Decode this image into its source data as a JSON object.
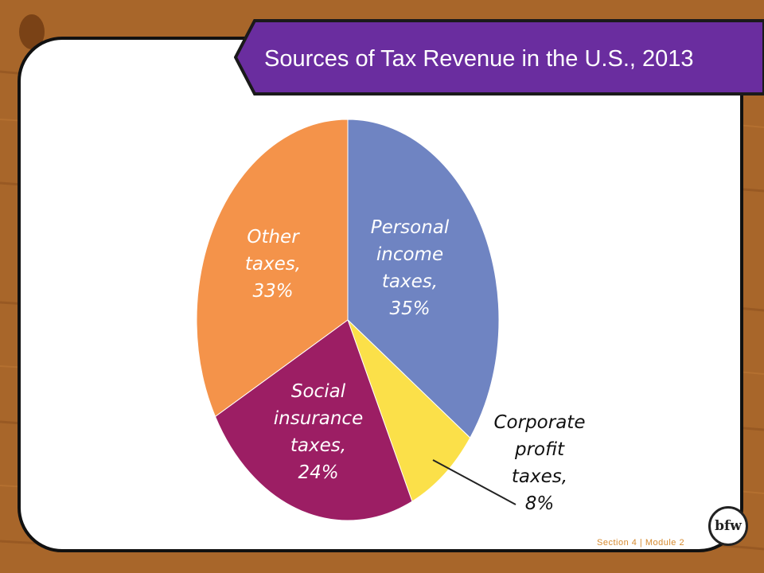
{
  "slide": {
    "title": "Sources of Tax Revenue in the U.S., 2013",
    "footer": "Section 4 | Module 2",
    "logo_text": "bfw"
  },
  "colors": {
    "banner": "#6a2d9f",
    "wood": "#a8662a"
  },
  "chart_data": {
    "type": "pie",
    "title": "Sources of Tax Revenue in the U.S., 2013",
    "slices": [
      {
        "label": [
          "Personal",
          "income",
          "taxes,",
          "35%"
        ],
        "value": 35,
        "color": "#6f84c2"
      },
      {
        "label": [
          "Corporate",
          "profit",
          "taxes,",
          "8%"
        ],
        "value": 8,
        "color": "#fbe049"
      },
      {
        "label": [
          "Social",
          "insurance",
          "taxes,",
          "24%"
        ],
        "value": 24,
        "color": "#9c1e64"
      },
      {
        "label": [
          "Other",
          "taxes,",
          "33%"
        ],
        "value": 33,
        "color": "#f4934a"
      }
    ]
  }
}
